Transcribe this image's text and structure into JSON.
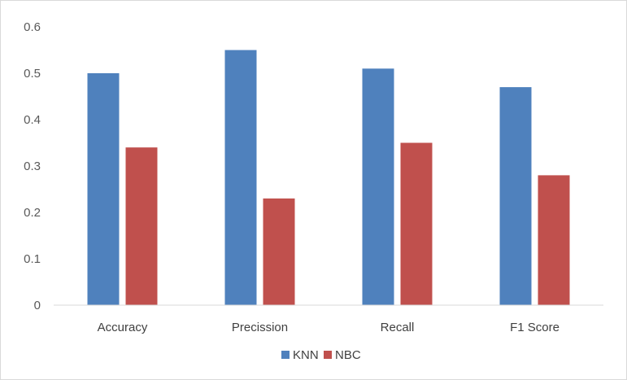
{
  "chart_data": {
    "type": "bar",
    "categories": [
      "Accuracy",
      "Precission",
      "Recall",
      "F1 Score"
    ],
    "series": [
      {
        "name": "KNN",
        "color": "#4f81bd",
        "values": [
          0.5,
          0.55,
          0.51,
          0.47
        ]
      },
      {
        "name": "NBC",
        "color": "#c0504d",
        "values": [
          0.34,
          0.23,
          0.35,
          0.28
        ]
      }
    ],
    "title": "",
    "xlabel": "",
    "ylabel": "",
    "ylim": [
      0,
      0.6
    ],
    "yticks": [
      "0",
      "0.1",
      "0.2",
      "0.3",
      "0.4",
      "0.5",
      "0.6"
    ],
    "grid": false,
    "legend_position": "bottom"
  }
}
